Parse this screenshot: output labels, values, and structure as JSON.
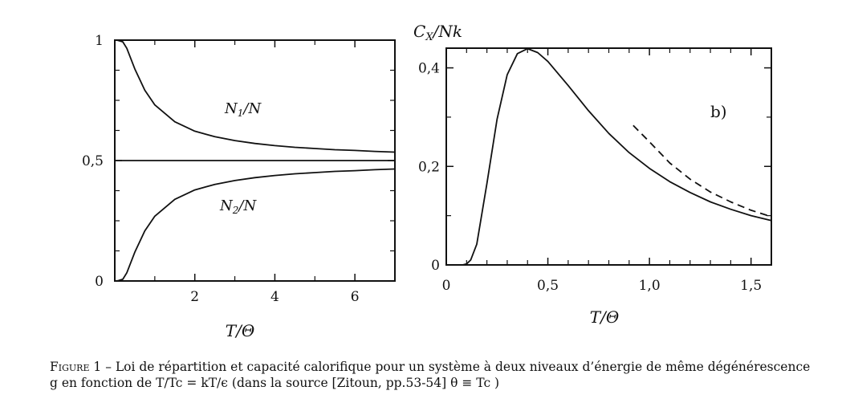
{
  "chart_data": [
    {
      "type": "line",
      "xlabel": "T/Θ",
      "ylabel": "",
      "xlim": [
        0,
        7
      ],
      "ylim": [
        0,
        1
      ],
      "xticks": [
        2,
        4,
        6
      ],
      "xtick_labels": [
        "2",
        "4",
        "6"
      ],
      "yticks": [
        0,
        0.5,
        1
      ],
      "ytick_labels": [
        "0",
        "0,5",
        "1"
      ],
      "grid": false,
      "series": [
        {
          "name": "N1/N",
          "x": [
            0,
            0.05,
            0.1,
            0.2,
            0.3,
            0.4,
            0.5,
            0.75,
            1,
            1.5,
            2,
            2.5,
            3,
            3.5,
            4,
            4.5,
            5,
            5.5,
            6,
            6.5,
            7
          ],
          "y": [
            1,
            1,
            0.998,
            0.993,
            0.966,
            0.924,
            0.881,
            0.792,
            0.731,
            0.661,
            0.622,
            0.599,
            0.583,
            0.571,
            0.562,
            0.555,
            0.55,
            0.545,
            0.542,
            0.538,
            0.535
          ]
        },
        {
          "name": "N2/N",
          "x": [
            0,
            0.05,
            0.1,
            0.2,
            0.3,
            0.4,
            0.5,
            0.75,
            1,
            1.5,
            2,
            2.5,
            3,
            3.5,
            4,
            4.5,
            5,
            5.5,
            6,
            6.5,
            7
          ],
          "y": [
            0,
            0,
            0.002,
            0.007,
            0.034,
            0.076,
            0.119,
            0.208,
            0.269,
            0.339,
            0.378,
            0.401,
            0.417,
            0.429,
            0.438,
            0.445,
            0.45,
            0.455,
            0.458,
            0.462,
            0.465
          ]
        },
        {
          "name": "",
          "x": [
            0,
            7
          ],
          "y": [
            0.5,
            0.5
          ]
        }
      ],
      "annotations": [
        "N1/N",
        "N2/N"
      ]
    },
    {
      "type": "line",
      "ylabel": "Cx/Nk",
      "xlabel": "T/Θ",
      "xlim": [
        0,
        1.6
      ],
      "ylim": [
        0,
        0.44
      ],
      "xticks": [
        0,
        0.5,
        1.0,
        1.5
      ],
      "xtick_labels": [
        "0",
        "0,5",
        "1,0",
        "1,5"
      ],
      "yticks": [
        0,
        0.2,
        0.4
      ],
      "ytick_labels": [
        "0",
        "0,2",
        "0,4"
      ],
      "grid": false,
      "series": [
        {
          "name": "",
          "style": "solid",
          "x": [
            0.08,
            0.1,
            0.12,
            0.15,
            0.2,
            0.25,
            0.3,
            0.35,
            0.4,
            0.45,
            0.5,
            0.6,
            0.7,
            0.8,
            0.9,
            1.0,
            1.1,
            1.2,
            1.3,
            1.4,
            1.5,
            1.6
          ],
          "y": [
            0.0,
            0.002,
            0.01,
            0.042,
            0.165,
            0.296,
            0.386,
            0.429,
            0.439,
            0.431,
            0.413,
            0.364,
            0.313,
            0.267,
            0.228,
            0.196,
            0.169,
            0.147,
            0.128,
            0.113,
            0.1,
            0.09
          ]
        },
        {
          "name": "",
          "style": "dashed",
          "x": [
            0.92,
            1.0,
            1.1,
            1.2,
            1.3,
            1.4,
            1.5,
            1.6
          ],
          "y": [
            0.283,
            0.25,
            0.207,
            0.174,
            0.148,
            0.128,
            0.111,
            0.098
          ]
        }
      ],
      "annotations": [
        "b)"
      ]
    }
  ],
  "labels": {
    "p1_n1": "N",
    "p1_n1_sub": "1",
    "p1_n1_rest": "/N",
    "p1_n2": "N",
    "p1_n2_sub": "2",
    "p1_n2_rest": "/N",
    "p1_xlabel": "T/Θ",
    "p2_ylabel_c": "C",
    "p2_ylabel_x": "X",
    "p2_ylabel_rest": "/Nk",
    "p2_xlabel": "T/Θ",
    "p2_panel": "b)"
  },
  "caption": {
    "fig": "Figure 1",
    "line1": " – Loi de répartition et capacité calorifique pour un système à deux niveaux d’énergie de même dégénérescence",
    "line2": "g en fonction de T/Tc = kT/ϵ (dans la source [Zitoun, pp.53-54] θ ≡ Tc )"
  }
}
